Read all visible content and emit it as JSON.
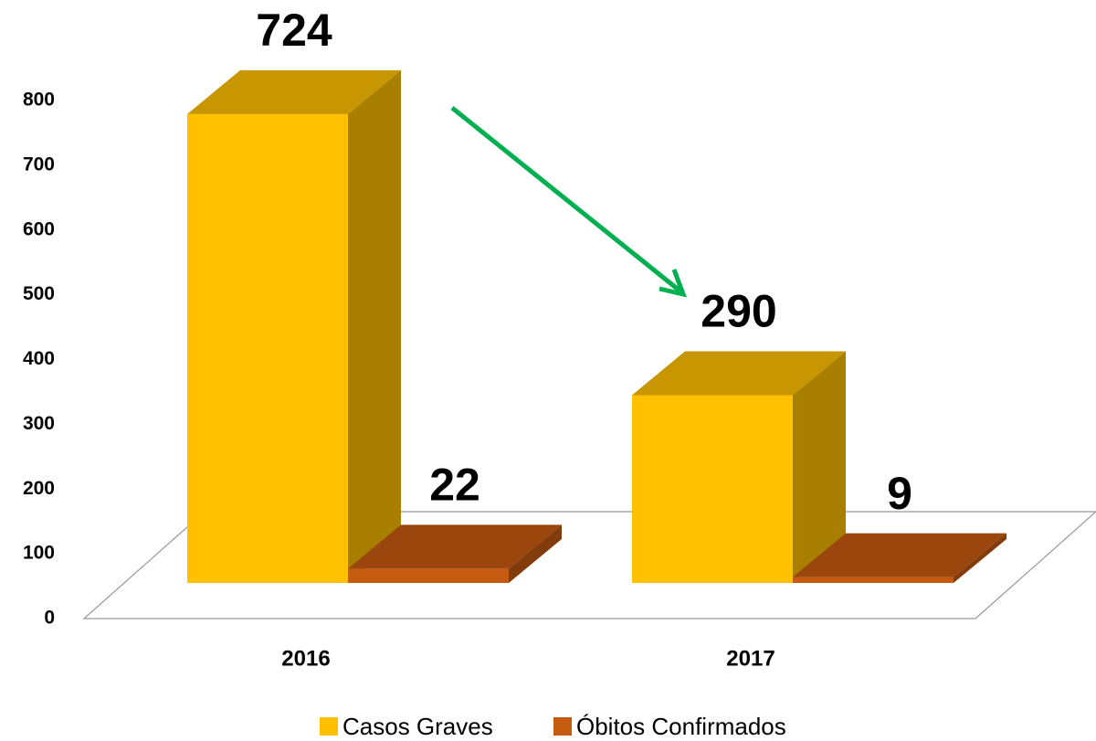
{
  "chart_data": {
    "type": "bar3d",
    "categories": [
      "2016",
      "2017"
    ],
    "series": [
      {
        "name": "Casos Graves",
        "color": "#FFC000",
        "values": [
          724,
          290
        ]
      },
      {
        "name": "Óbitos Confirmados",
        "color": "#C55A11",
        "values": [
          22,
          9
        ]
      }
    ],
    "ylim": [
      0,
      800
    ],
    "yticks": [
      0,
      100,
      200,
      300,
      400,
      500,
      600,
      700,
      800
    ],
    "legend": "bottom"
  }
}
